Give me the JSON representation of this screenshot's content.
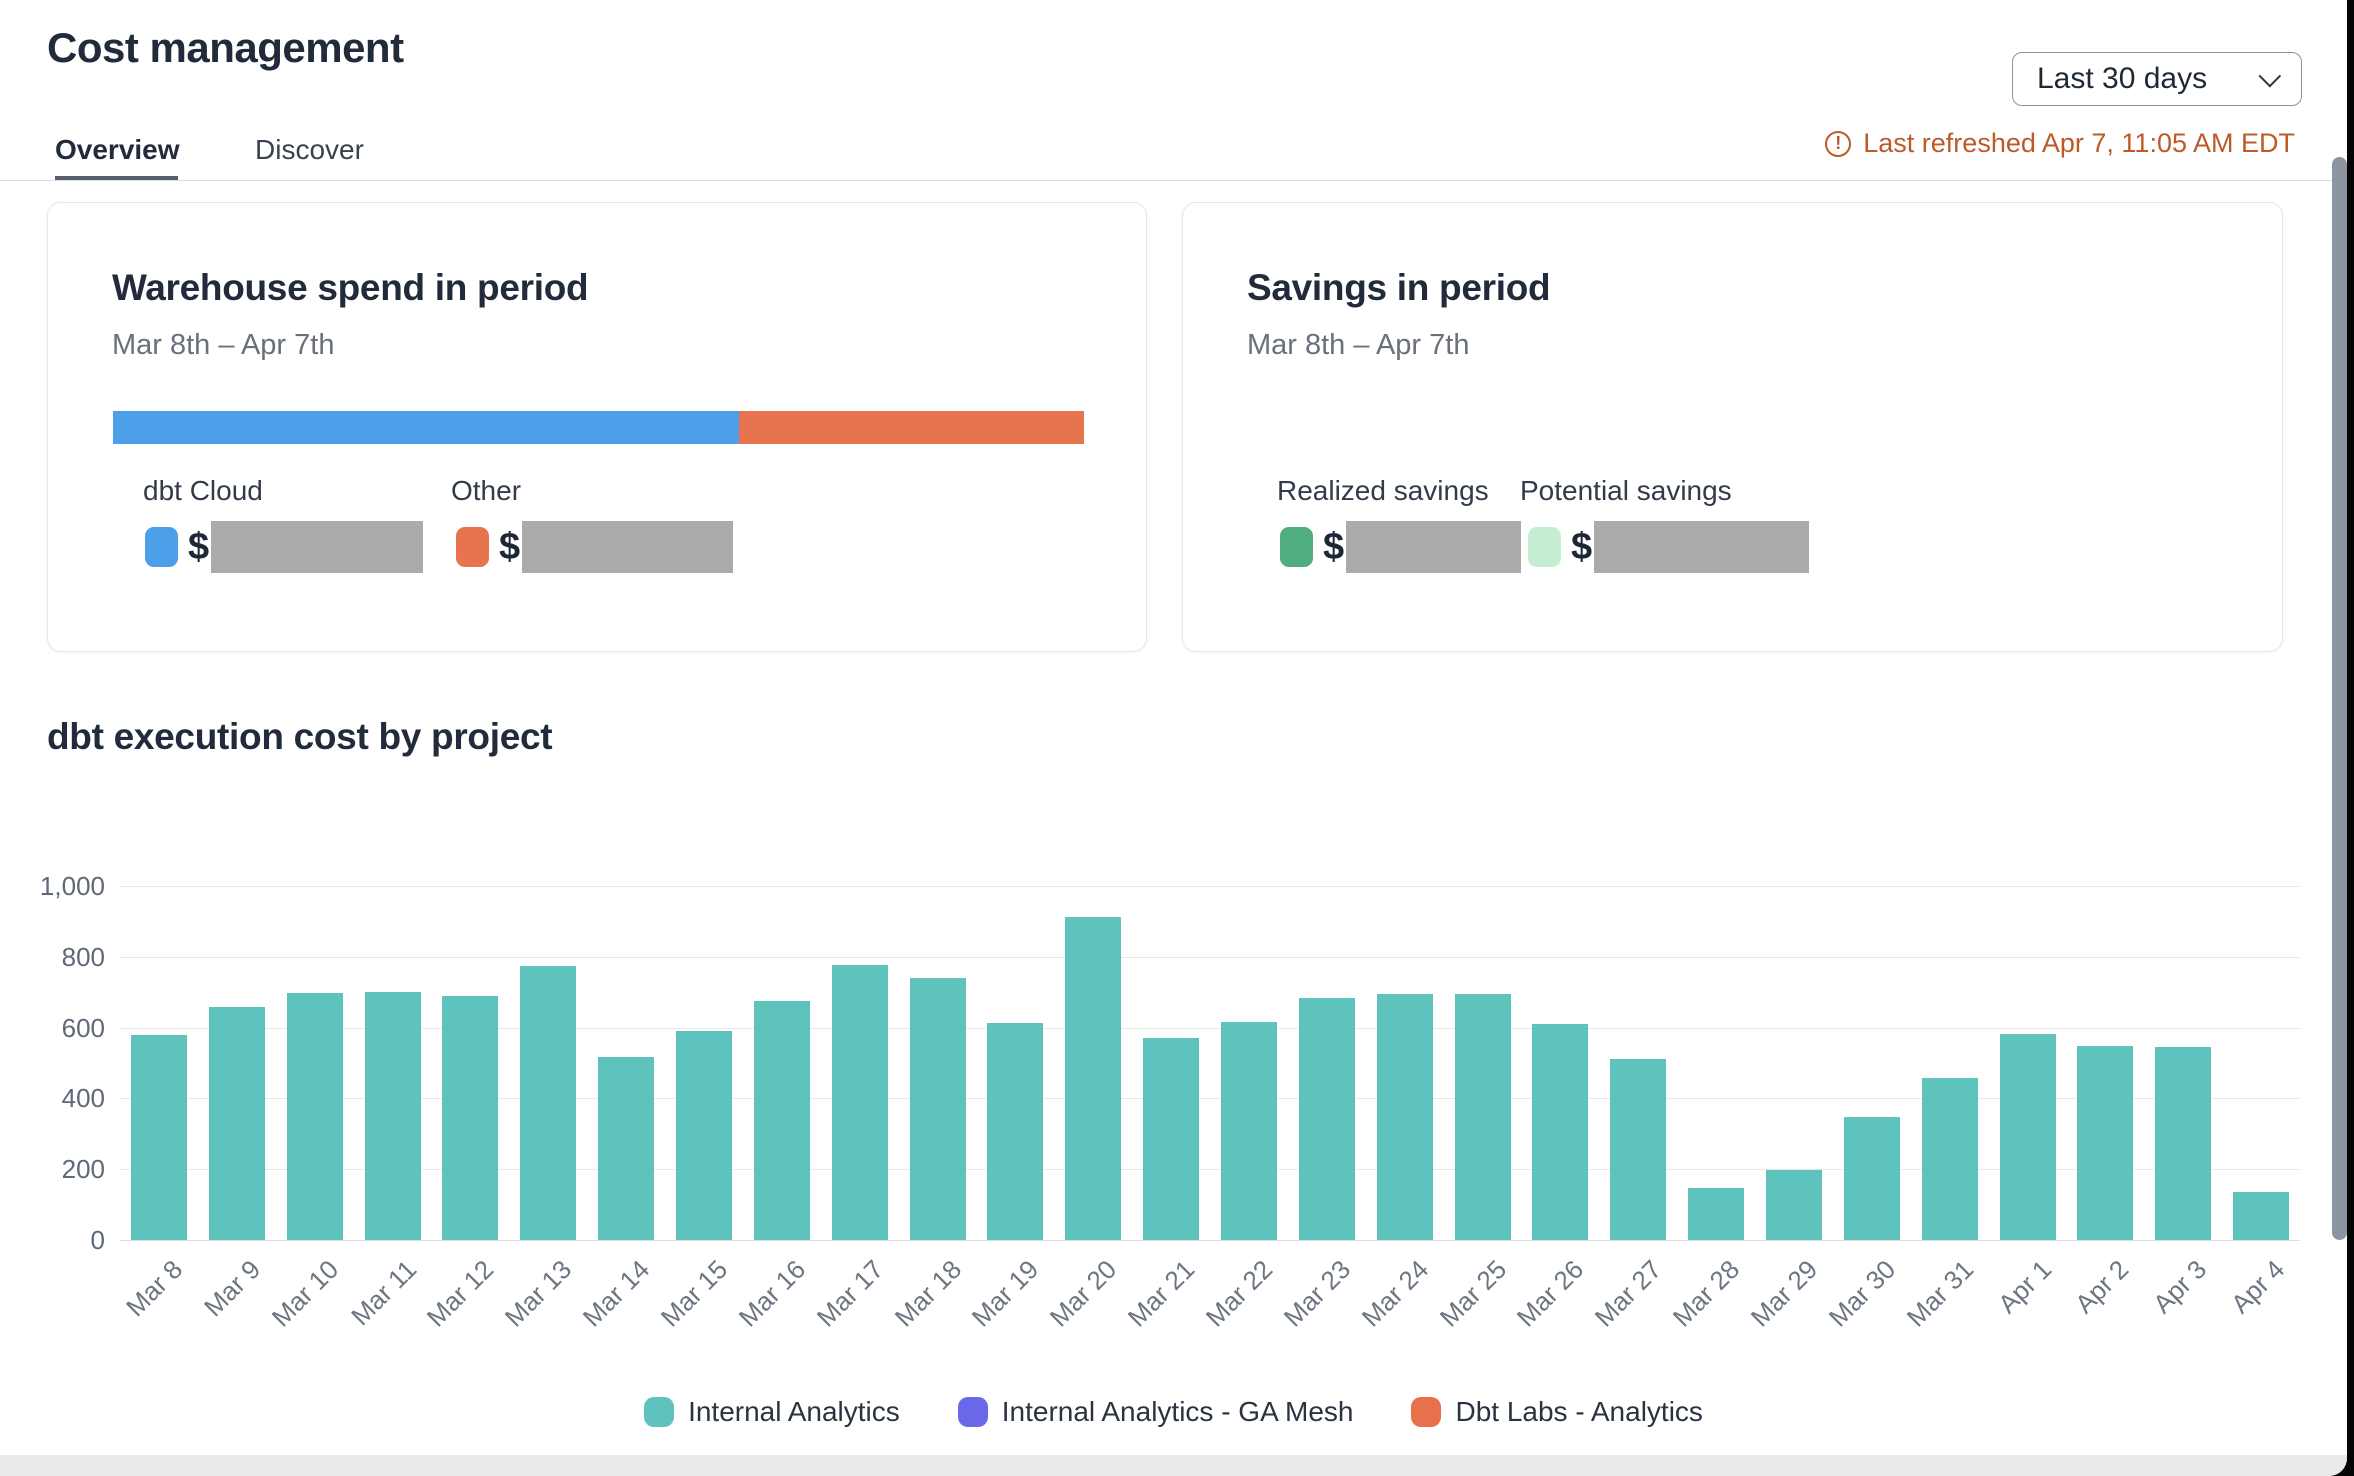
{
  "header": {
    "title": "Cost management",
    "tabs": [
      {
        "label": "Overview",
        "active": true
      },
      {
        "label": "Discover",
        "active": false
      }
    ],
    "date_range_selector": {
      "value": "Last 30 days"
    },
    "last_refreshed": "Last refreshed Apr 7, 11:05 AM EDT",
    "refresh_icon": "alert-circle-icon",
    "refresh_color": "#BC5B27"
  },
  "cards": {
    "warehouse_spend": {
      "title": "Warehouse spend in period",
      "subtitle": "Mar 8th – Apr 7th",
      "stacked_bar": {
        "segments": [
          {
            "name": "dbt Cloud",
            "color": "#4C9FE8",
            "fraction": 0.645
          },
          {
            "name": "Other",
            "color": "#E8734F",
            "fraction": 0.355
          }
        ]
      },
      "legend": [
        {
          "label": "dbt Cloud",
          "color": "#4C9FE8",
          "value_prefix": "$",
          "value_redacted": true
        },
        {
          "label": "Other",
          "color": "#E8734F",
          "value_prefix": "$",
          "value_redacted": true
        }
      ]
    },
    "savings": {
      "title": "Savings in period",
      "subtitle": "Mar 8th – Apr 7th",
      "legend": [
        {
          "label": "Realized savings",
          "color": "#4FAD7F",
          "value_prefix": "$",
          "value_redacted": true
        },
        {
          "label": "Potential savings",
          "color": "#C3EED2",
          "value_prefix": "$",
          "value_redacted": true
        }
      ]
    }
  },
  "chart_section": {
    "title": "dbt execution cost by project"
  },
  "chart_data": {
    "type": "bar",
    "title": "dbt execution cost by project",
    "xlabel": "",
    "ylabel": "",
    "ylim": [
      0,
      1000
    ],
    "grid": true,
    "legend_position": "bottom",
    "bar_color": "#5EC3BD",
    "yticks": [
      {
        "value": 0,
        "label": "0"
      },
      {
        "value": 200,
        "label": "200"
      },
      {
        "value": 400,
        "label": "400"
      },
      {
        "value": 600,
        "label": "600"
      },
      {
        "value": 800,
        "label": "800"
      },
      {
        "value": 1000,
        "label": "1,000"
      }
    ],
    "categories": [
      "Mar 8",
      "Mar 9",
      "Mar 10",
      "Mar 11",
      "Mar 12",
      "Mar 13",
      "Mar 14",
      "Mar 15",
      "Mar 16",
      "Mar 17",
      "Mar 18",
      "Mar 19",
      "Mar 20",
      "Mar 21",
      "Mar 22",
      "Mar 23",
      "Mar 24",
      "Mar 25",
      "Mar 26",
      "Mar 27",
      "Mar 28",
      "Mar 29",
      "Mar 30",
      "Mar 31",
      "Apr 1",
      "Apr 2",
      "Apr 3",
      "Apr 4"
    ],
    "series": [
      {
        "name": "Internal Analytics",
        "color": "#5EC3BD",
        "values": [
          580,
          658,
          697,
          700,
          688,
          773,
          516,
          590,
          676,
          778,
          740,
          612,
          913,
          570,
          615,
          683,
          696,
          694,
          611,
          510,
          146,
          197,
          347,
          459,
          583,
          549,
          544,
          135
        ]
      },
      {
        "name": "Internal Analytics - GA Mesh",
        "color": "#6968E8",
        "values": [
          0,
          0,
          0,
          0,
          0,
          0,
          0,
          0,
          0,
          0,
          0,
          0,
          0,
          0,
          0,
          0,
          0,
          0,
          0,
          0,
          0,
          0,
          0,
          0,
          0,
          0,
          0,
          0
        ]
      },
      {
        "name": "Dbt Labs - Analytics",
        "color": "#E8714B",
        "values": [
          0,
          0,
          0,
          0,
          0,
          0,
          0,
          0,
          0,
          0,
          0,
          0,
          0,
          0,
          0,
          0,
          0,
          0,
          0,
          0,
          0,
          0,
          0,
          0,
          0,
          0,
          0,
          0
        ]
      }
    ]
  }
}
